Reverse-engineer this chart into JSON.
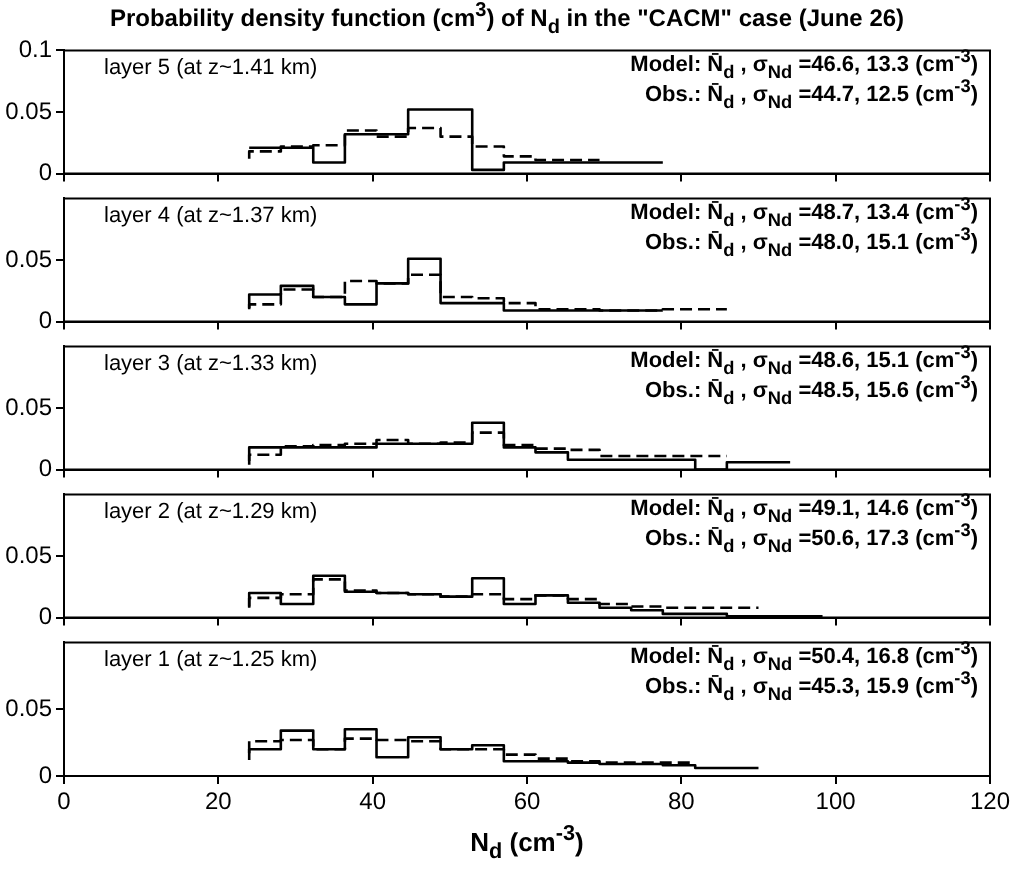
{
  "chart_data": [
    {
      "type": "step",
      "title": "Probability density function (cm$^{3}$) of N$_{d}$ in the \"CACM\" case (June 26)",
      "annotations": [
        "layer 5 (at z~1.41 km)",
        "Model: N̄$_{d}$ ,  σ$_{Nd}$ =46.6, 13.3 (cm$^{-3}$)",
        "Obs.:  N̄$_{d}$ ,  σ$_{Nd}$ =44.7, 12.5 (cm$^{-3}$)"
      ],
      "xlim": [
        0,
        120
      ],
      "xticks": [
        0,
        20,
        40,
        60,
        80,
        100,
        120
      ],
      "ylim": [
        0,
        0.1
      ],
      "yticks": [
        0,
        0.05,
        0.1
      ],
      "tick_labels": "y",
      "series": [
        {
          "color": "#000000",
          "line_style": "solid",
          "x": [
            24,
            28.1,
            32.3,
            36.4,
            40.5,
            44.6,
            48.8,
            52.9,
            57,
            61.1,
            65.3,
            69.4,
            73.5,
            77.6
          ],
          "values": [
            0.021,
            0.021,
            0.021,
            0.009,
            0.032,
            0.032,
            0.052,
            0.052,
            0.003,
            0.009,
            0.009,
            0.009,
            0.009,
            0.009
          ]
        },
        {
          "color": "#000000",
          "line_style": "dashed",
          "x": [
            24,
            28.1,
            32.3,
            36.4,
            40.5,
            44.6,
            48.8,
            52.9,
            57,
            61.1,
            65.3,
            69.4
          ],
          "values": [
            0.012,
            0.018,
            0.022,
            0.023,
            0.035,
            0.03,
            0.037,
            0.03,
            0.022,
            0.014,
            0.011,
            0.011
          ]
        }
      ]
    },
    {
      "type": "step",
      "annotations": [
        "layer 4 (at z~1.37 km)",
        "Model: N̄$_{d}$ ,  σ$_{Nd}$ =48.7, 13.4 (cm$^{-3}$)",
        "Obs.:  N̄$_{d}$ ,  σ$_{Nd}$ =48.0, 15.1 (cm$^{-3}$)"
      ],
      "xlim": [
        0,
        120
      ],
      "xticks": [
        0,
        20,
        40,
        60,
        80,
        100,
        120
      ],
      "ylim": [
        0,
        0.1
      ],
      "yticks": [
        0,
        0.05
      ],
      "tick_labels": "y",
      "series": [
        {
          "color": "#000000",
          "line_style": "solid",
          "x": [
            24,
            28.1,
            32.3,
            36.4,
            40.5,
            44.6,
            48.8,
            52.9,
            57,
            61.1,
            65.3,
            69.4,
            73.5,
            77.6
          ],
          "values": [
            0.011,
            0.022,
            0.029,
            0.02,
            0.014,
            0.031,
            0.051,
            0.015,
            0.015,
            0.009,
            0.009,
            0.009,
            0.009,
            0.009
          ]
        },
        {
          "color": "#000000",
          "line_style": "dashed",
          "x": [
            24,
            28.1,
            32.3,
            36.4,
            40.5,
            44.6,
            48.8,
            52.9,
            57,
            61.1,
            65.3,
            69.4,
            73.5,
            77.6,
            81.8,
            85.9
          ],
          "values": [
            0.01,
            0.014,
            0.026,
            0.02,
            0.033,
            0.031,
            0.038,
            0.02,
            0.019,
            0.015,
            0.01,
            0.01,
            0.009,
            0.009,
            0.01,
            0.01
          ]
        }
      ]
    },
    {
      "type": "step",
      "annotations": [
        "layer 3 (at z~1.33 km)",
        "Model: N̄$_{d}$ ,  σ$_{Nd}$ =48.6, 15.1 (cm$^{-3}$)",
        "Obs.:  N̄$_{d}$ ,  σ$_{Nd}$ =48.5, 15.6 (cm$^{-3}$)"
      ],
      "xlim": [
        0,
        120
      ],
      "xticks": [
        0,
        20,
        40,
        60,
        80,
        100,
        120
      ],
      "ylim": [
        0,
        0.1
      ],
      "yticks": [
        0,
        0.05
      ],
      "tick_labels": "y",
      "series": [
        {
          "color": "#000000",
          "line_style": "solid",
          "x": [
            24,
            28.1,
            32.3,
            36.4,
            40.5,
            44.6,
            48.8,
            52.9,
            57,
            61.1,
            65.3,
            69.4,
            73.5,
            77.6,
            81.8,
            85.9,
            90,
            94.1
          ],
          "values": [
            0.007,
            0.018,
            0.018,
            0.018,
            0.018,
            0.021,
            0.021,
            0.021,
            0.038,
            0.018,
            0.014,
            0.008,
            0.008,
            0.008,
            0.008,
            0,
            0.006,
            0.006
          ]
        },
        {
          "color": "#000000",
          "line_style": "dashed",
          "x": [
            24,
            28.1,
            32.3,
            36.4,
            40.5,
            44.6,
            48.8,
            52.9,
            57,
            61.1,
            65.3,
            69.4,
            73.5,
            77.6,
            81.8,
            85.9
          ],
          "values": [
            0.004,
            0.012,
            0.019,
            0.02,
            0.021,
            0.024,
            0.021,
            0.022,
            0.03,
            0.02,
            0.017,
            0.016,
            0.011,
            0.011,
            0.011,
            0.011
          ]
        }
      ]
    },
    {
      "type": "step",
      "annotations": [
        "layer 2 (at z~1.29 km)",
        "Model: N̄$_{d}$ ,  σ$_{Nd}$ =49.1, 14.6 (cm$^{-3}$)",
        "Obs.:  N̄$_{d}$ ,  σ$_{Nd}$ =50.6, 17.3 (cm$^{-3}$)"
      ],
      "xlim": [
        0,
        120
      ],
      "xticks": [
        0,
        20,
        40,
        60,
        80,
        100,
        120
      ],
      "ylim": [
        0,
        0.1
      ],
      "yticks": [
        0,
        0.05
      ],
      "tick_labels": "y",
      "series": [
        {
          "color": "#000000",
          "line_style": "solid",
          "x": [
            24,
            28.1,
            32.3,
            36.4,
            40.5,
            44.6,
            48.8,
            52.9,
            57,
            61.1,
            65.3,
            69.4,
            73.5,
            77.6,
            81.8,
            85.9,
            90,
            94.1,
            98.3
          ],
          "values": [
            0.009,
            0.02,
            0.011,
            0.034,
            0.021,
            0.02,
            0.019,
            0.017,
            0.032,
            0.011,
            0.018,
            0.012,
            0.008,
            0.006,
            0.003,
            0.003,
            0.001,
            0.001,
            0.001
          ]
        },
        {
          "color": "#000000",
          "line_style": "dashed",
          "x": [
            24,
            28.1,
            32.3,
            36.4,
            40.5,
            44.6,
            48.8,
            52.9,
            57,
            61.1,
            65.3,
            69.4,
            73.5,
            77.6,
            81.8,
            85.9,
            90
          ],
          "values": [
            0.008,
            0.016,
            0.019,
            0.031,
            0.022,
            0.02,
            0.019,
            0.017,
            0.019,
            0.015,
            0.018,
            0.015,
            0.011,
            0.009,
            0.008,
            0.008,
            0.008
          ]
        }
      ]
    },
    {
      "type": "step",
      "xlabel": "N$_{d}$ (cm$^{-3}$)",
      "annotations": [
        "layer 1 (at z~1.25 km)",
        "Model: N̄$_{d}$ ,  σ$_{Nd}$ =50.4, 16.8 (cm$^{-3}$)",
        "Obs.:  N̄$_{d}$ ,  σ$_{Nd}$ =45.3, 15.9 (cm$^{-3}$)"
      ],
      "xlim": [
        0,
        120
      ],
      "xticks": [
        0,
        20,
        40,
        60,
        80,
        100,
        120
      ],
      "ylim": [
        0,
        0.1
      ],
      "yticks": [
        0,
        0.05
      ],
      "series": [
        {
          "color": "#000000",
          "line_style": "solid",
          "x": [
            24,
            28.1,
            32.3,
            36.4,
            40.5,
            44.6,
            48.8,
            52.9,
            57,
            61.1,
            65.3,
            69.4,
            73.5,
            77.6,
            81.8,
            85.9,
            90
          ],
          "values": [
            0.012,
            0.02,
            0.034,
            0.02,
            0.035,
            0.014,
            0.029,
            0.02,
            0.023,
            0.011,
            0.011,
            0.01,
            0.009,
            0.009,
            0.008,
            0.006,
            0.006
          ]
        },
        {
          "color": "#000000",
          "line_style": "dashed",
          "x": [
            24,
            28.1,
            32.3,
            36.4,
            40.5,
            44.6,
            48.8,
            52.9,
            57,
            61.1,
            65.3,
            69.4,
            73.5,
            77.6,
            81.8
          ],
          "values": [
            0.017,
            0.026,
            0.027,
            0.02,
            0.028,
            0.027,
            0.026,
            0.02,
            0.02,
            0.016,
            0.013,
            0.011,
            0.01,
            0.01,
            0.01
          ]
        }
      ]
    }
  ]
}
